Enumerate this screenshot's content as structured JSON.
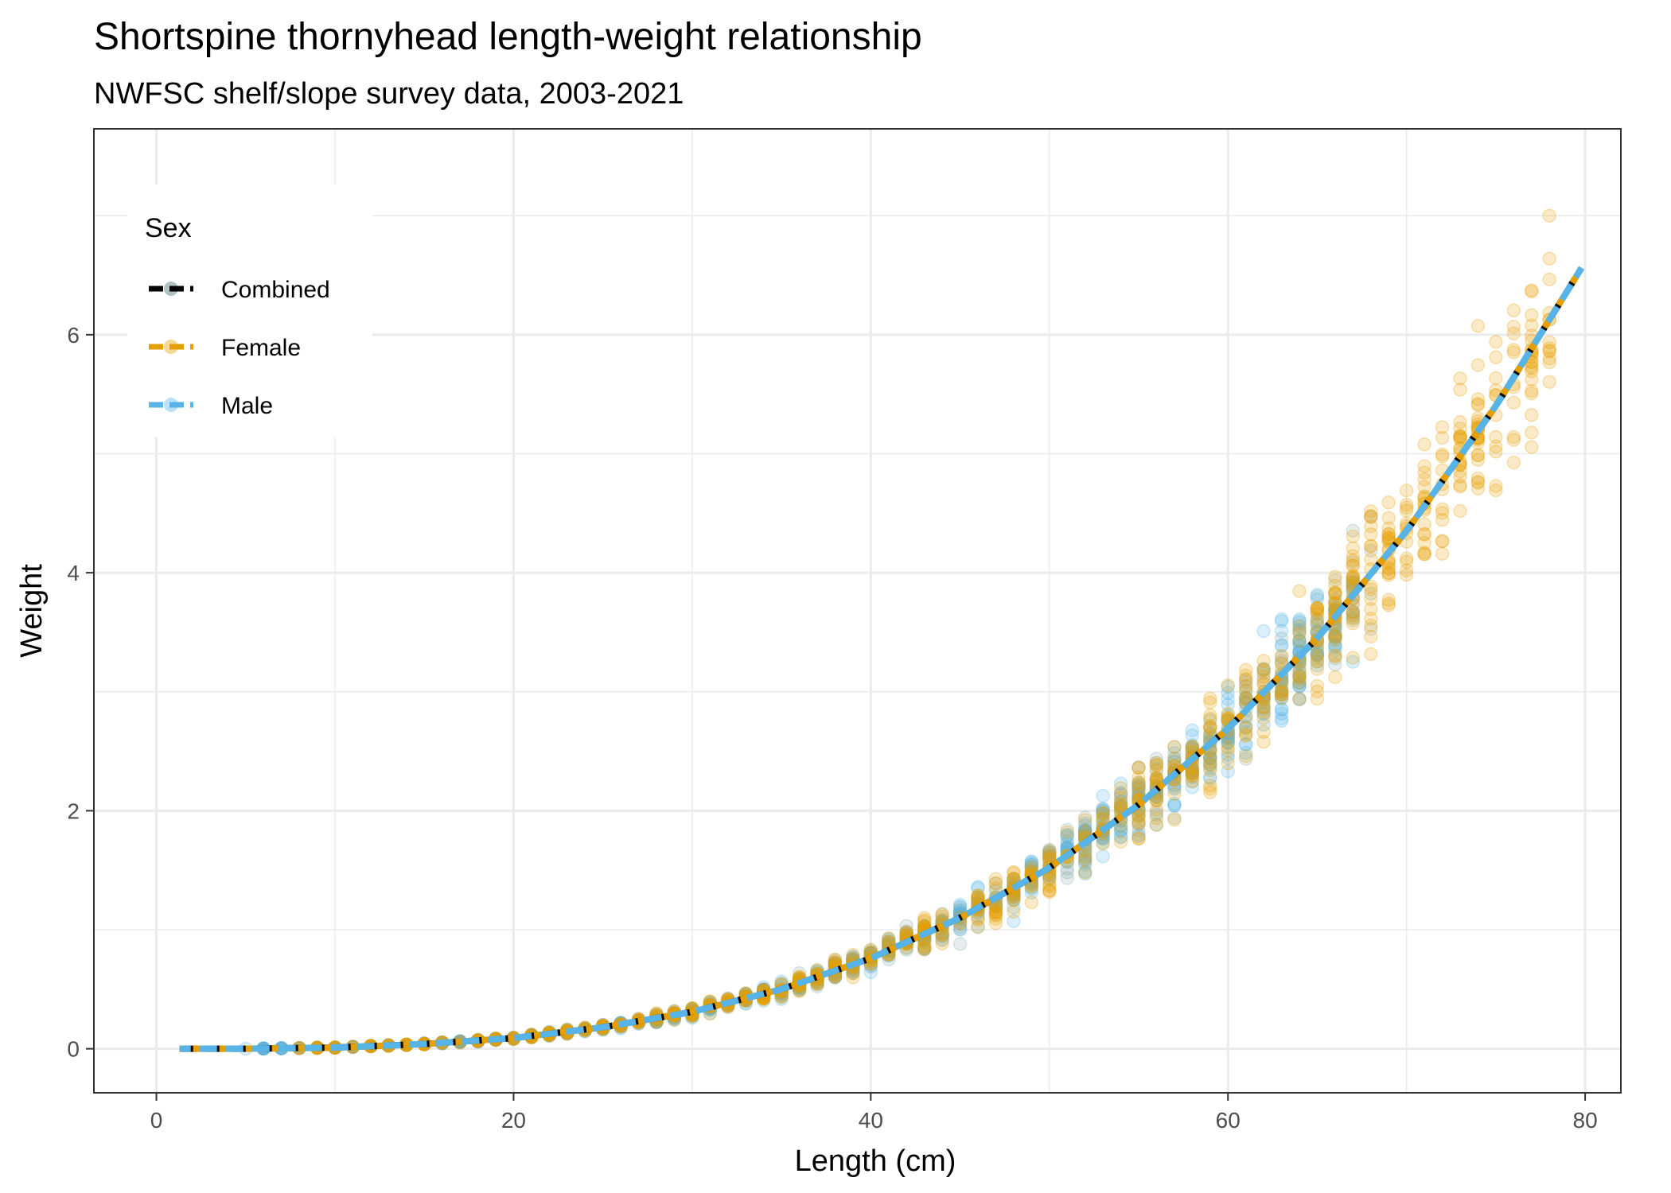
{
  "chart_data": {
    "type": "scatter",
    "title": "Shortspine thornyhead length-weight relationship",
    "subtitle": "NWFSC shelf/slope survey data, 2003-2021",
    "xlabel": "Length (cm)",
    "ylabel": "Weight",
    "xlim": [
      -3.5,
      82
    ],
    "ylim": [
      -0.37,
      7.73
    ],
    "x_ticks": [
      0,
      20,
      40,
      60,
      80
    ],
    "y_ticks": [
      0,
      2,
      4,
      6
    ],
    "grid": true,
    "legend": {
      "title": "Sex",
      "position": "top-left",
      "items": [
        "Combined",
        "Female",
        "Male"
      ]
    },
    "colors": {
      "Combined": "#000000",
      "Female": "#E69F00",
      "Male": "#56B4E9",
      "combined_points": "#7a9a9a"
    },
    "series": [
      {
        "name": "Combined",
        "fit": {
          "x": [
            1,
            5,
            10,
            15,
            20,
            25,
            30,
            35,
            40,
            45,
            50,
            55,
            60,
            65,
            70,
            75,
            80
          ],
          "y": [
            0.0,
            0.0,
            0.01,
            0.04,
            0.09,
            0.18,
            0.31,
            0.5,
            0.76,
            1.1,
            1.52,
            2.05,
            2.69,
            3.45,
            4.35,
            5.4,
            6.61
          ]
        },
        "points_x_range": [
          5,
          68
        ],
        "points_y_range": [
          0.0,
          5.45
        ]
      },
      {
        "name": "Female",
        "fit": {
          "x": [
            1,
            5,
            10,
            15,
            20,
            25,
            30,
            35,
            40,
            45,
            50,
            55,
            60,
            65,
            70,
            75,
            80
          ],
          "y": [
            0.0,
            0.0,
            0.01,
            0.04,
            0.09,
            0.18,
            0.31,
            0.5,
            0.76,
            1.1,
            1.52,
            2.05,
            2.69,
            3.45,
            4.35,
            5.4,
            6.61
          ]
        },
        "points_x_range": [
          8,
          78
        ],
        "points_y_range": [
          0.0,
          7.0
        ]
      },
      {
        "name": "Male",
        "fit": {
          "x": [
            1,
            5,
            10,
            15,
            20,
            25,
            30,
            35,
            40,
            45,
            50,
            55,
            60,
            65,
            70,
            75,
            80
          ],
          "y": [
            0.0,
            0.0,
            0.01,
            0.04,
            0.09,
            0.18,
            0.31,
            0.5,
            0.76,
            1.1,
            1.52,
            2.05,
            2.69,
            3.45,
            4.35,
            5.4,
            6.61
          ]
        },
        "points_x_range": [
          5,
          67
        ],
        "points_y_range": [
          0.0,
          4.85
        ]
      }
    ]
  }
}
